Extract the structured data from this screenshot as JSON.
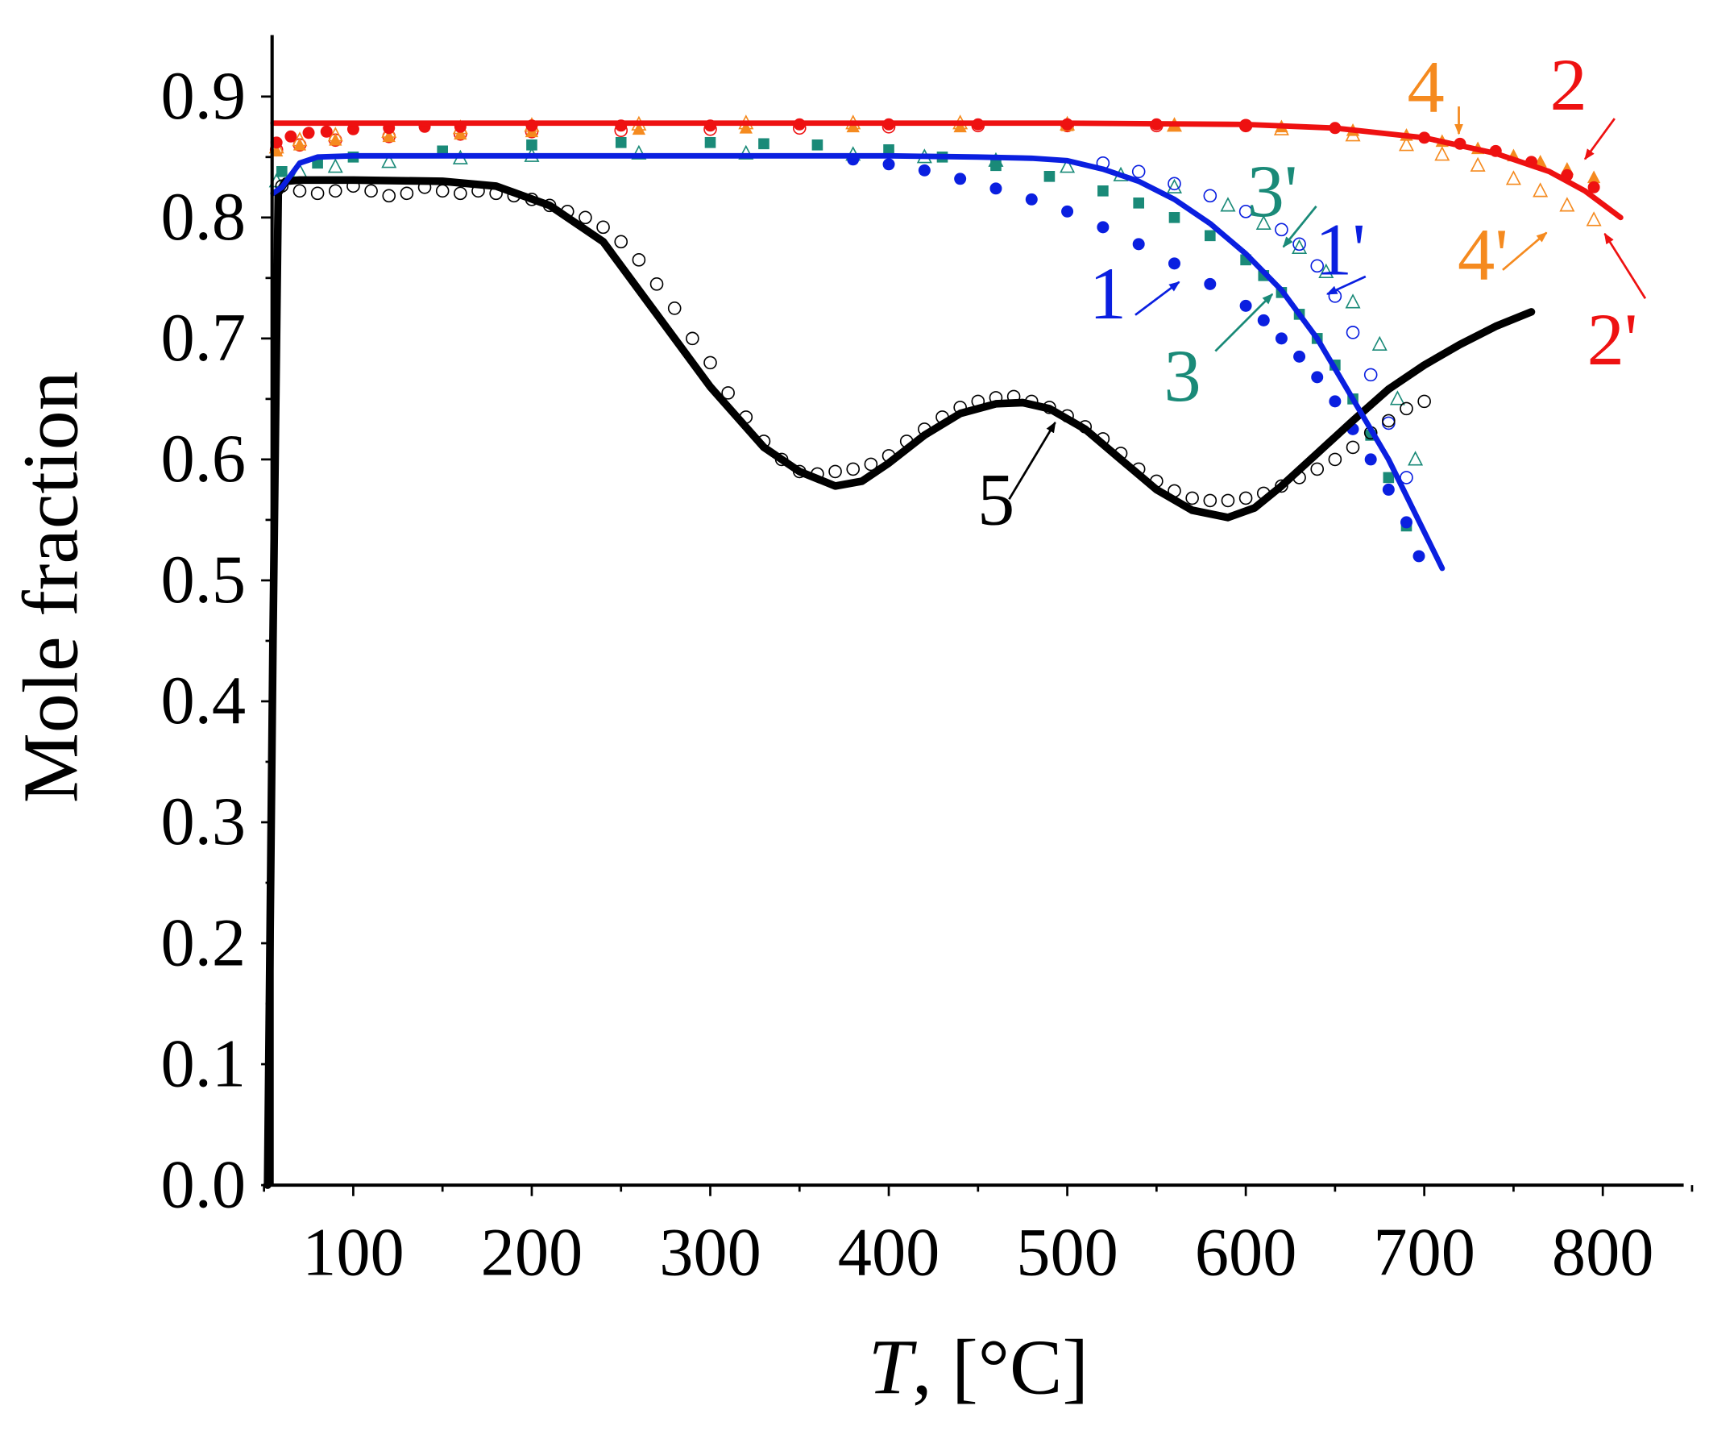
{
  "chart_data": {
    "type": "line",
    "title": "",
    "xlabel_italic": "T",
    "xlabel_rest": ", [°C]",
    "ylabel": "Mole fraction",
    "xlim": [
      50,
      850
    ],
    "ylim": [
      0.0,
      0.95
    ],
    "grid": false,
    "legend": "none",
    "x_ticks": [
      100,
      200,
      300,
      400,
      500,
      600,
      700,
      800
    ],
    "x_tick_labels": [
      "100",
      "200",
      "300",
      "400",
      "500",
      "600",
      "700",
      "800"
    ],
    "y_ticks": [
      0.0,
      0.1,
      0.2,
      0.3,
      0.4,
      0.5,
      0.6,
      0.7,
      0.8,
      0.9
    ],
    "y_tick_labels": [
      "0.0",
      "0.1",
      "0.2",
      "0.3",
      "0.4",
      "0.5",
      "0.6",
      "0.7",
      "0.8",
      "0.9"
    ],
    "colors": {
      "s1": "#0a1fe0",
      "s2": "#ee1111",
      "s3": "#1a8a78",
      "s4": "#f58a1f",
      "s5": "#000000"
    },
    "series": [
      {
        "id": "s1-line",
        "name": "1",
        "kind": "line",
        "color_key": "s1",
        "x": [
          55,
          60,
          70,
          80,
          100,
          150,
          200,
          300,
          400,
          450,
          480,
          500,
          520,
          540,
          560,
          580,
          600,
          620,
          640,
          660,
          680,
          700,
          710
        ],
        "y": [
          0.82,
          0.825,
          0.845,
          0.85,
          0.851,
          0.851,
          0.851,
          0.851,
          0.851,
          0.85,
          0.849,
          0.847,
          0.84,
          0.83,
          0.815,
          0.795,
          0.77,
          0.74,
          0.7,
          0.65,
          0.6,
          0.54,
          0.51
        ]
      },
      {
        "id": "s1-markers",
        "name": "1",
        "kind": "filled-circle",
        "color_key": "s1",
        "x": [
          380,
          400,
          420,
          440,
          460,
          480,
          500,
          520,
          540,
          560,
          580,
          600,
          610,
          620,
          630,
          640,
          650,
          660,
          670,
          680,
          690,
          697
        ],
        "y": [
          0.848,
          0.844,
          0.839,
          0.832,
          0.824,
          0.815,
          0.805,
          0.792,
          0.778,
          0.762,
          0.745,
          0.727,
          0.715,
          0.7,
          0.685,
          0.668,
          0.648,
          0.625,
          0.6,
          0.575,
          0.548,
          0.52
        ]
      },
      {
        "id": "s1p-markers",
        "name": "1'",
        "kind": "open-circle",
        "color_key": "s1",
        "x": [
          520,
          540,
          560,
          580,
          600,
          620,
          630,
          640,
          650,
          660,
          670,
          680,
          690
        ],
        "y": [
          0.845,
          0.838,
          0.828,
          0.818,
          0.805,
          0.79,
          0.778,
          0.76,
          0.735,
          0.705,
          0.67,
          0.63,
          0.585
        ]
      },
      {
        "id": "s2-line",
        "name": "2",
        "kind": "line",
        "color_key": "s2",
        "x": [
          55,
          100,
          200,
          300,
          400,
          500,
          600,
          650,
          700,
          740,
          770,
          790,
          810
        ],
        "y": [
          0.878,
          0.878,
          0.878,
          0.878,
          0.878,
          0.878,
          0.877,
          0.874,
          0.866,
          0.853,
          0.838,
          0.822,
          0.8
        ]
      },
      {
        "id": "s2-markers",
        "name": "2",
        "kind": "filled-circle",
        "color_key": "s2",
        "x": [
          57,
          65,
          75,
          85,
          100,
          120,
          140,
          160,
          200,
          250,
          300,
          350,
          400,
          450,
          500,
          550,
          600,
          650,
          700,
          720,
          740,
          760,
          780,
          795
        ],
        "y": [
          0.862,
          0.867,
          0.87,
          0.871,
          0.873,
          0.874,
          0.875,
          0.875,
          0.876,
          0.876,
          0.876,
          0.877,
          0.877,
          0.877,
          0.877,
          0.877,
          0.876,
          0.874,
          0.866,
          0.861,
          0.855,
          0.846,
          0.835,
          0.825
        ]
      },
      {
        "id": "s2p-markers",
        "name": "2'",
        "kind": "open-circle",
        "color_key": "s2",
        "x": [
          57,
          70,
          90,
          120,
          160,
          200,
          250,
          300,
          350,
          400,
          450,
          500,
          550,
          600
        ],
        "y": [
          0.856,
          0.86,
          0.864,
          0.867,
          0.869,
          0.871,
          0.872,
          0.873,
          0.874,
          0.875,
          0.876,
          0.876,
          0.876,
          0.876
        ]
      },
      {
        "id": "s3-markers",
        "name": "3",
        "kind": "filled-square",
        "color_key": "s3",
        "x": [
          60,
          80,
          100,
          150,
          200,
          250,
          300,
          330,
          360,
          400,
          430,
          460,
          490,
          520,
          540,
          560,
          580,
          600,
          610,
          620,
          630,
          640,
          650,
          660,
          670,
          680,
          690
        ],
        "y": [
          0.838,
          0.845,
          0.85,
          0.855,
          0.86,
          0.862,
          0.862,
          0.861,
          0.86,
          0.856,
          0.85,
          0.843,
          0.834,
          0.822,
          0.812,
          0.8,
          0.785,
          0.765,
          0.752,
          0.738,
          0.72,
          0.7,
          0.678,
          0.65,
          0.62,
          0.585,
          0.545
        ]
      },
      {
        "id": "s3p-markers",
        "name": "3'",
        "kind": "open-triangle",
        "color_key": "s3",
        "x": [
          57,
          70,
          90,
          120,
          160,
          200,
          260,
          320,
          380,
          420,
          460,
          500,
          530,
          560,
          590,
          610,
          630,
          645,
          660,
          675,
          685,
          695
        ],
        "y": [
          0.83,
          0.838,
          0.842,
          0.846,
          0.849,
          0.851,
          0.853,
          0.853,
          0.852,
          0.85,
          0.847,
          0.842,
          0.835,
          0.825,
          0.81,
          0.795,
          0.775,
          0.755,
          0.73,
          0.695,
          0.65,
          0.6
        ]
      },
      {
        "id": "s4-markers",
        "name": "4",
        "kind": "filled-triangle",
        "color_key": "s4",
        "x": [
          57,
          70,
          90,
          120,
          160,
          200,
          260,
          320,
          380,
          440,
          500,
          560,
          620,
          660,
          690,
          710,
          730,
          750,
          765,
          780,
          795
        ],
        "y": [
          0.855,
          0.86,
          0.864,
          0.867,
          0.869,
          0.871,
          0.873,
          0.874,
          0.875,
          0.875,
          0.876,
          0.876,
          0.875,
          0.872,
          0.868,
          0.863,
          0.857,
          0.851,
          0.846,
          0.84,
          0.833
        ]
      },
      {
        "id": "s4p-markers",
        "name": "4'",
        "kind": "open-triangle",
        "color_key": "s4",
        "x": [
          57,
          70,
          90,
          120,
          160,
          200,
          260,
          320,
          380,
          440,
          500,
          560,
          620,
          660,
          690,
          710,
          730,
          750,
          765,
          780,
          795
        ],
        "y": [
          0.858,
          0.864,
          0.868,
          0.871,
          0.874,
          0.876,
          0.877,
          0.878,
          0.878,
          0.878,
          0.877,
          0.876,
          0.873,
          0.868,
          0.86,
          0.852,
          0.843,
          0.832,
          0.822,
          0.81,
          0.798
        ]
      },
      {
        "id": "s5-line",
        "name": "5",
        "kind": "line",
        "color_key": "s5",
        "x": [
          52,
          55,
          58,
          62,
          70,
          100,
          150,
          180,
          210,
          240,
          270,
          300,
          330,
          350,
          370,
          385,
          400,
          420,
          440,
          460,
          475,
          490,
          510,
          530,
          550,
          570,
          590,
          605,
          620,
          640,
          660,
          680,
          700,
          720,
          740,
          760
        ],
        "y": [
          0.0,
          0.45,
          0.82,
          0.83,
          0.831,
          0.831,
          0.83,
          0.826,
          0.81,
          0.78,
          0.72,
          0.66,
          0.61,
          0.59,
          0.578,
          0.582,
          0.597,
          0.62,
          0.638,
          0.646,
          0.647,
          0.642,
          0.625,
          0.6,
          0.575,
          0.558,
          0.552,
          0.56,
          0.578,
          0.605,
          0.632,
          0.658,
          0.678,
          0.695,
          0.71,
          0.722
        ]
      },
      {
        "id": "s5-markers",
        "name": "5",
        "kind": "open-circle",
        "color_key": "s5",
        "x": [
          60,
          70,
          80,
          90,
          100,
          110,
          120,
          130,
          140,
          150,
          160,
          170,
          180,
          190,
          200,
          210,
          220,
          230,
          240,
          250,
          260,
          270,
          280,
          290,
          300,
          310,
          320,
          330,
          340,
          350,
          360,
          370,
          380,
          390,
          400,
          410,
          420,
          430,
          440,
          450,
          460,
          470,
          480,
          490,
          500,
          510,
          520,
          530,
          540,
          550,
          560,
          570,
          580,
          590,
          600,
          610,
          620,
          630,
          640,
          650,
          660,
          670,
          680,
          690,
          700
        ],
        "y": [
          0.826,
          0.822,
          0.82,
          0.822,
          0.826,
          0.822,
          0.818,
          0.82,
          0.825,
          0.822,
          0.82,
          0.822,
          0.82,
          0.818,
          0.815,
          0.81,
          0.805,
          0.8,
          0.792,
          0.78,
          0.765,
          0.745,
          0.725,
          0.7,
          0.68,
          0.655,
          0.635,
          0.615,
          0.6,
          0.59,
          0.588,
          0.59,
          0.592,
          0.596,
          0.603,
          0.615,
          0.625,
          0.635,
          0.643,
          0.648,
          0.651,
          0.652,
          0.648,
          0.643,
          0.636,
          0.627,
          0.617,
          0.605,
          0.592,
          0.582,
          0.574,
          0.568,
          0.566,
          0.566,
          0.568,
          0.572,
          0.578,
          0.585,
          0.592,
          0.6,
          0.61,
          0.622,
          0.632,
          0.642,
          0.648
        ]
      }
    ],
    "annotations": [
      {
        "id": "ann-1",
        "text": "1",
        "color_key": "s1",
        "label_at": [
          1010,
          290
        ],
        "arrow_from": [
          1035,
          287
        ],
        "arrow_to": [
          1075,
          257
        ]
      },
      {
        "id": "ann-1p",
        "text": "1'",
        "color_key": "s1",
        "label_at": [
          1222,
          250
        ],
        "arrow_from": [
          1245,
          252
        ],
        "arrow_to": [
          1210,
          268
        ]
      },
      {
        "id": "ann-2",
        "text": "2",
        "color_key": "s2",
        "label_at": [
          1430,
          100
        ],
        "arrow_from": [
          1472,
          108
        ],
        "arrow_to": [
          1445,
          145
        ]
      },
      {
        "id": "ann-2p",
        "text": "2'",
        "color_key": "s2",
        "label_at": [
          1470,
          332
        ],
        "arrow_from": [
          1500,
          272
        ],
        "arrow_to": [
          1463,
          213
        ]
      },
      {
        "id": "ann-3",
        "text": "3",
        "color_key": "s3",
        "label_at": [
          1078,
          365
        ],
        "arrow_from": [
          1108,
          320
        ],
        "arrow_to": [
          1160,
          268
        ]
      },
      {
        "id": "ann-3p",
        "text": "3'",
        "color_key": "s3",
        "label_at": [
          1160,
          197
        ],
        "arrow_from": [
          1200,
          188
        ],
        "arrow_to": [
          1170,
          225
        ]
      },
      {
        "id": "ann-4",
        "text": "4",
        "color_key": "s4",
        "label_at": [
          1300,
          102
        ],
        "arrow_from": [
          1330,
          97
        ],
        "arrow_to": [
          1330,
          122
        ]
      },
      {
        "id": "ann-4p",
        "text": "4'",
        "color_key": "s4",
        "label_at": [
          1352,
          255
        ],
        "arrow_from": [
          1370,
          246
        ],
        "arrow_to": [
          1410,
          212
        ]
      },
      {
        "id": "ann-5",
        "text": "5",
        "color_key": "s5",
        "label_at": [
          908,
          478
        ],
        "arrow_from": [
          920,
          455
        ],
        "arrow_to": [
          962,
          385
        ]
      }
    ]
  }
}
